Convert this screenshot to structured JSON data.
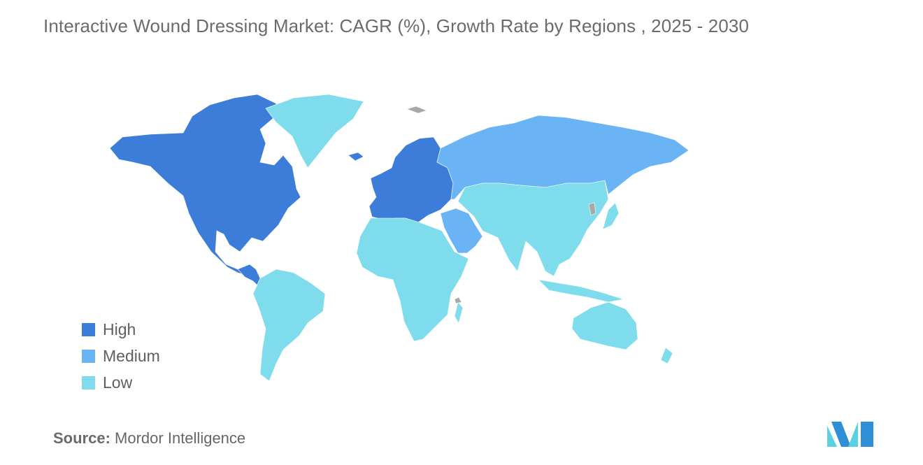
{
  "title": "Interactive Wound Dressing Market: CAGR (%), Growth Rate by Regions  , 2025 - 2030",
  "legend": [
    {
      "label": "High",
      "color": "#3b7dd8"
    },
    {
      "label": "Medium",
      "color": "#6ab4f5"
    },
    {
      "label": "Low",
      "color": "#7fdcec"
    }
  ],
  "colors": {
    "high": "#3b7dd8",
    "medium": "#6ab4f5",
    "low": "#7fdcec",
    "no_data": "#a9a9a9"
  },
  "regions": [
    {
      "name": "North America",
      "level": "High"
    },
    {
      "name": "Europe",
      "level": "High"
    },
    {
      "name": "Russia & Central Asia",
      "level": "Medium"
    },
    {
      "name": "Middle East",
      "level": "Medium"
    },
    {
      "name": "Greenland",
      "level": "Low"
    },
    {
      "name": "South America",
      "level": "Low"
    },
    {
      "name": "Africa",
      "level": "Low"
    },
    {
      "name": "Asia Pacific",
      "level": "Low"
    },
    {
      "name": "Australia & New Zealand",
      "level": "Low"
    }
  ],
  "source": {
    "label": "Source:",
    "value": "Mordor Intelligence"
  },
  "logo_icon": "mordor-intelligence-logo"
}
